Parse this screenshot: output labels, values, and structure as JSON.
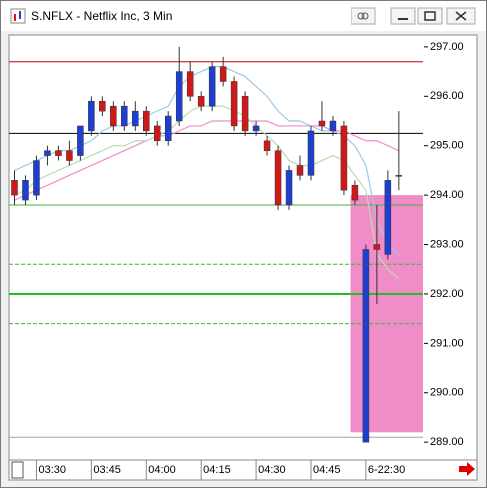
{
  "window": {
    "title": "S.NFLX - Netflix Inc, 3 Min"
  },
  "chart_data": {
    "type": "candlestick",
    "up_color": "#1f3fd0",
    "down_color": "#d01818",
    "open": [
      294.3,
      293.9,
      294.0,
      294.8,
      294.9,
      294.9,
      294.8,
      295.3,
      295.9,
      295.8,
      295.4,
      295.4,
      295.7,
      295.4,
      295.1,
      295.5,
      296.5,
      296.0,
      295.8,
      296.6,
      296.3,
      296.0,
      295.3,
      295.1,
      294.9,
      293.8,
      294.6,
      294.4,
      295.5,
      295.3,
      295.4,
      294.2,
      289.0,
      293.0,
      292.8,
      294.4
    ],
    "high": [
      294.5,
      294.4,
      294.8,
      295.0,
      295.0,
      295.1,
      295.4,
      296.0,
      296.0,
      295.9,
      295.9,
      295.9,
      295.8,
      295.5,
      295.7,
      297.0,
      296.7,
      296.1,
      296.7,
      296.8,
      296.4,
      296.1,
      295.5,
      295.2,
      295.0,
      294.6,
      294.8,
      295.4,
      295.9,
      295.6,
      295.5,
      294.3,
      293.0,
      293.8,
      294.5,
      295.7
    ],
    "low": [
      293.8,
      293.8,
      293.9,
      294.6,
      294.7,
      294.6,
      294.7,
      295.2,
      295.6,
      295.3,
      295.3,
      295.3,
      295.2,
      295.0,
      295.0,
      295.4,
      295.9,
      295.7,
      295.7,
      296.2,
      295.3,
      295.2,
      295.2,
      294.8,
      293.7,
      293.7,
      294.3,
      294.3,
      295.3,
      295.2,
      294.0,
      293.8,
      289.0,
      291.8,
      292.7,
      294.1
    ],
    "close": [
      294.0,
      294.3,
      294.7,
      294.9,
      294.8,
      294.7,
      295.4,
      295.9,
      295.7,
      295.4,
      295.8,
      295.7,
      295.3,
      295.1,
      295.6,
      296.5,
      296.0,
      295.8,
      296.6,
      296.3,
      295.4,
      295.3,
      295.4,
      294.9,
      293.8,
      294.5,
      294.4,
      295.3,
      295.4,
      295.5,
      294.1,
      293.9,
      292.9,
      292.9,
      294.3,
      294.4
    ],
    "averages": [
      {
        "color": "#9cc8e8",
        "values": [
          294.5,
          294.6,
          294.7,
          294.8,
          294.9,
          294.9,
          295.0,
          295.1,
          295.3,
          295.4,
          295.4,
          295.5,
          295.6,
          295.7,
          295.8,
          296.2,
          296.4,
          296.5,
          296.6,
          296.6,
          296.5,
          296.4,
          296.2,
          296.0,
          295.7,
          295.5,
          295.5,
          295.4,
          295.3,
          295.3,
          295.2,
          295.0,
          294.6,
          293.5,
          293.0,
          292.8
        ]
      },
      {
        "color": "#f08cc8",
        "values": [
          293.9,
          294.0,
          294.1,
          294.2,
          294.3,
          294.4,
          294.5,
          294.6,
          294.7,
          294.8,
          294.9,
          295.0,
          295.1,
          295.2,
          295.2,
          295.3,
          295.4,
          295.4,
          295.5,
          295.5,
          295.5,
          295.5,
          295.5,
          295.5,
          295.4,
          295.4,
          295.4,
          295.4,
          295.4,
          295.3,
          295.3,
          295.2,
          295.1,
          295.1,
          295.0,
          294.9
        ]
      },
      {
        "color": "#b8dcb0",
        "values": [
          294.0,
          294.1,
          294.3,
          294.4,
          294.5,
          294.6,
          294.7,
          294.8,
          294.9,
          295.0,
          295.0,
          295.1,
          295.1,
          295.2,
          295.3,
          295.5,
          295.7,
          295.8,
          295.8,
          295.8,
          295.7,
          295.6,
          295.4,
          295.2,
          295.0,
          294.7,
          294.6,
          294.6,
          294.7,
          294.8,
          294.7,
          294.4,
          294.1,
          292.8,
          292.5,
          292.3
        ]
      }
    ],
    "levels": [
      {
        "value": 296.7,
        "color": "#c00000",
        "style": "solid"
      },
      {
        "value": 295.25,
        "color": "#000000",
        "style": "solid"
      },
      {
        "value": 293.8,
        "color": "#3cb43c",
        "style": "solid"
      },
      {
        "value": 292.6,
        "color": "#3cb43c",
        "style": "dashed"
      },
      {
        "value": 292.0,
        "color": "#20c020",
        "style": "thick"
      },
      {
        "value": 291.4,
        "color": "#3cb43c",
        "style": "dashed"
      },
      {
        "value": 289.1,
        "color": "#a0a0a0",
        "style": "solid"
      }
    ],
    "zone": {
      "from": 289.2,
      "to": 294.0,
      "x": [
        30.6,
        37.2
      ],
      "color": "#f08cc8"
    },
    "xlim": [
      -0.5,
      37.2
    ],
    "ylim": [
      288.72,
      297.18
    ],
    "xticks": [
      {
        "value": 2,
        "label": "03:30"
      },
      {
        "value": 7,
        "label": "03:45"
      },
      {
        "value": 12,
        "label": "04:00"
      },
      {
        "value": 17,
        "label": "04:15"
      },
      {
        "value": 22,
        "label": "04:30"
      },
      {
        "value": 27,
        "label": "04:45"
      },
      {
        "value": 32,
        "label": "6-22:30"
      }
    ],
    "yticks": [
      {
        "value": 297,
        "label": "297.00"
      },
      {
        "value": 296,
        "label": "296.00"
      },
      {
        "value": 295,
        "label": "295.00"
      },
      {
        "value": 294,
        "label": "294.00"
      },
      {
        "value": 293,
        "label": "293.00"
      },
      {
        "value": 292,
        "label": "292.00"
      },
      {
        "value": 291,
        "label": "291.00"
      },
      {
        "value": 290,
        "label": "290.00"
      },
      {
        "value": 289,
        "label": "289.00"
      }
    ]
  }
}
